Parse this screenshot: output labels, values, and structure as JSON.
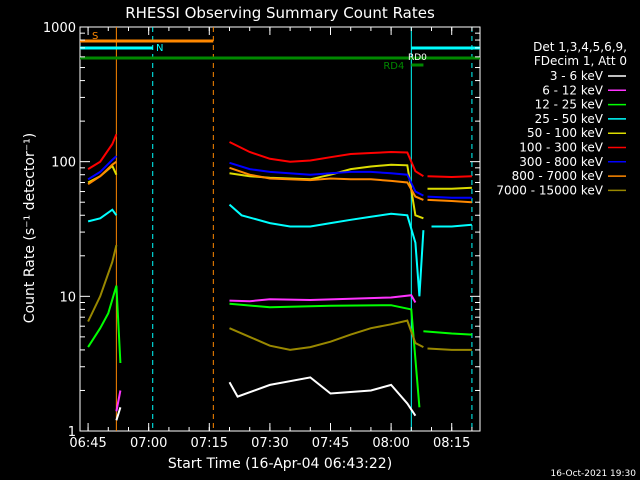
{
  "chart_data": {
    "type": "line",
    "title": "RHESSI Observing Summary Count Rates",
    "xlabel": "Start Time (16-Apr-04 06:43:22)",
    "ylabel": "Count Rate (s⁻¹ detector⁻¹)",
    "yscale": "log",
    "ylim": [
      1,
      1000
    ],
    "y_ticks": [
      {
        "value": 1,
        "label": "1"
      },
      {
        "value": 10,
        "label": "10"
      },
      {
        "value": 100,
        "label": "100"
      },
      {
        "value": 1000,
        "label": "1000"
      }
    ],
    "x_range": [
      "06:43",
      "08:22"
    ],
    "x_ticks": [
      "06:45",
      "07:00",
      "07:15",
      "07:30",
      "07:45",
      "08:00",
      "08:15"
    ],
    "legend": {
      "placement": "right",
      "header": [
        "Det 1,3,4,5,6,9,",
        "FDecim 1, Att 0"
      ]
    },
    "series": [
      {
        "name": "3 - 6 keV",
        "color": "#ffffff",
        "segments": [
          [
            [
              "06:52",
              1.2
            ],
            [
              "06:53",
              1.5
            ]
          ],
          [
            [
              "07:20",
              2.3
            ],
            [
              "07:22",
              1.8
            ],
            [
              "07:30",
              2.2
            ],
            [
              "07:40",
              2.5
            ],
            [
              "07:45",
              1.9
            ],
            [
              "07:55",
              2.0
            ],
            [
              "08:00",
              2.2
            ],
            [
              "08:04",
              1.6
            ],
            [
              "08:06",
              1.3
            ]
          ]
        ]
      },
      {
        "name": "6 - 12 keV",
        "color": "#ff33ff",
        "segments": [
          [
            [
              "06:52",
              1.4
            ],
            [
              "06:53",
              2.0
            ]
          ],
          [
            [
              "07:20",
              9.3
            ],
            [
              "07:25",
              9.2
            ],
            [
              "07:30",
              9.5
            ],
            [
              "07:40",
              9.4
            ],
            [
              "07:50",
              9.6
            ],
            [
              "08:00",
              9.8
            ],
            [
              "08:05",
              10.2
            ],
            [
              "08:06",
              9.0
            ]
          ]
        ]
      },
      {
        "name": "12 - 25 keV",
        "color": "#00ff00",
        "segments": [
          [
            [
              "06:45",
              4.2
            ],
            [
              "06:48",
              5.8
            ],
            [
              "06:50",
              7.5
            ],
            [
              "06:52",
              12
            ],
            [
              "06:53",
              3.2
            ]
          ],
          [
            [
              "07:20",
              8.8
            ],
            [
              "07:30",
              8.3
            ],
            [
              "07:45",
              8.5
            ],
            [
              "08:00",
              8.6
            ],
            [
              "08:05",
              8.0
            ],
            [
              "08:07",
              1.5
            ]
          ],
          [
            [
              "08:08",
              5.5
            ],
            [
              "08:15",
              5.3
            ],
            [
              "08:20",
              5.2
            ]
          ]
        ]
      },
      {
        "name": "25 - 50 keV",
        "color": "#00ffff",
        "segments": [
          [
            [
              "06:45",
              36
            ],
            [
              "06:48",
              38
            ],
            [
              "06:51",
              44
            ],
            [
              "06:52",
              40
            ]
          ],
          [
            [
              "07:20",
              48
            ],
            [
              "07:23",
              40
            ],
            [
              "07:30",
              35
            ],
            [
              "07:35",
              33
            ],
            [
              "07:40",
              33
            ],
            [
              "07:45",
              35
            ],
            [
              "07:50",
              37
            ],
            [
              "07:55",
              39
            ],
            [
              "08:00",
              41
            ],
            [
              "08:04",
              40
            ],
            [
              "08:06",
              25
            ],
            [
              "08:07",
              10
            ],
            [
              "08:08",
              31
            ]
          ],
          [
            [
              "08:10",
              33
            ],
            [
              "08:15",
              33
            ],
            [
              "08:20",
              34
            ]
          ]
        ]
      },
      {
        "name": "50 - 100 keV",
        "color": "#dddd00",
        "segments": [
          [
            [
              "06:45",
              70
            ],
            [
              "06:48",
              78
            ],
            [
              "06:51",
              93
            ],
            [
              "06:52",
              80
            ]
          ],
          [
            [
              "07:20",
              82
            ],
            [
              "07:25",
              78
            ],
            [
              "07:30",
              76
            ],
            [
              "07:40",
              74
            ],
            [
              "07:45",
              80
            ],
            [
              "07:50",
              88
            ],
            [
              "07:55",
              92
            ],
            [
              "08:00",
              95
            ],
            [
              "08:04",
              94
            ],
            [
              "08:06",
              40
            ],
            [
              "08:08",
              38
            ]
          ],
          [
            [
              "08:09",
              63
            ],
            [
              "08:15",
              63
            ],
            [
              "08:20",
              64
            ]
          ]
        ]
      },
      {
        "name": "100 - 300 keV",
        "color": "#ff0000",
        "segments": [
          [
            [
              "06:45",
              88
            ],
            [
              "06:48",
              100
            ],
            [
              "06:51",
              135
            ],
            [
              "06:52",
              160
            ]
          ],
          [
            [
              "07:20",
              140
            ],
            [
              "07:25",
              118
            ],
            [
              "07:30",
              105
            ],
            [
              "07:35",
              100
            ],
            [
              "07:40",
              102
            ],
            [
              "07:45",
              108
            ],
            [
              "07:50",
              114
            ],
            [
              "07:55",
              116
            ],
            [
              "08:00",
              118
            ],
            [
              "08:04",
              117
            ],
            [
              "08:06",
              85
            ],
            [
              "08:08",
              78
            ]
          ],
          [
            [
              "08:09",
              78
            ],
            [
              "08:15",
              77
            ],
            [
              "08:20",
              78
            ]
          ]
        ]
      },
      {
        "name": "300 - 800 keV",
        "color": "#0000ff",
        "segments": [
          [
            [
              "06:45",
              74
            ],
            [
              "06:48",
              84
            ],
            [
              "06:51",
              103
            ],
            [
              "06:52",
              110
            ]
          ],
          [
            [
              "07:20",
              98
            ],
            [
              "07:25",
              88
            ],
            [
              "07:30",
              84
            ],
            [
              "07:40",
              80
            ],
            [
              "07:45",
              82
            ],
            [
              "07:50",
              84
            ],
            [
              "07:55",
              84
            ],
            [
              "08:00",
              82
            ],
            [
              "08:04",
              80
            ],
            [
              "08:06",
              60
            ],
            [
              "08:08",
              56
            ]
          ],
          [
            [
              "08:09",
              55
            ],
            [
              "08:15",
              54
            ],
            [
              "08:20",
              54
            ]
          ]
        ]
      },
      {
        "name": "800 - 7000 keV",
        "color": "#ff8800",
        "segments": [
          [
            [
              "06:45",
              68
            ],
            [
              "06:48",
              78
            ],
            [
              "06:51",
              95
            ],
            [
              "06:52",
              100
            ]
          ],
          [
            [
              "07:20",
              90
            ],
            [
              "07:25",
              80
            ],
            [
              "07:30",
              75
            ],
            [
              "07:40",
              73
            ],
            [
              "07:45",
              75
            ],
            [
              "07:50",
              74
            ],
            [
              "07:55",
              74
            ],
            [
              "08:00",
              72
            ],
            [
              "08:04",
              70
            ],
            [
              "08:06",
              55
            ],
            [
              "08:08",
              52
            ]
          ],
          [
            [
              "08:09",
              52
            ],
            [
              "08:15",
              51
            ],
            [
              "08:20",
              50
            ]
          ]
        ]
      },
      {
        "name": "7000 - 15000 keV",
        "color": "#998800",
        "segments": [
          [
            [
              "06:45",
              6.5
            ],
            [
              "06:48",
              10
            ],
            [
              "06:51",
              18
            ],
            [
              "06:52",
              24
            ]
          ],
          [
            [
              "07:20",
              5.8
            ],
            [
              "07:25",
              5.0
            ],
            [
              "07:30",
              4.3
            ],
            [
              "07:35",
              4.0
            ],
            [
              "07:40",
              4.2
            ],
            [
              "07:45",
              4.6
            ],
            [
              "07:50",
              5.2
            ],
            [
              "07:55",
              5.8
            ],
            [
              "08:00",
              6.2
            ],
            [
              "08:04",
              6.6
            ],
            [
              "08:06",
              4.5
            ],
            [
              "08:08",
              4.2
            ]
          ],
          [
            [
              "08:09",
              4.1
            ],
            [
              "08:15",
              4.0
            ],
            [
              "08:20",
              4.0
            ]
          ]
        ]
      }
    ],
    "flag_bars": [
      {
        "label": "S",
        "color": "#ff8800",
        "start": "06:43",
        "end": "07:16",
        "level": "top"
      },
      {
        "label": "N",
        "color": "#00ffff",
        "start": "06:43",
        "end": "07:01",
        "level": "second"
      },
      {
        "label": "N",
        "color": "#00ffff",
        "start": "08:05",
        "end": "08:22",
        "level": "second",
        "show_label": false
      },
      {
        "label": "",
        "color": "#008800",
        "start": "06:43",
        "end": "08:22",
        "level": "third"
      },
      {
        "label": "RD4",
        "color": "#008800",
        "start": "08:05",
        "end": "08:08",
        "level": "fourth"
      },
      {
        "label": "RD0",
        "color": "#ffffff",
        "level": "third-label"
      }
    ],
    "markers": [
      {
        "time": "06:52",
        "color": "#ff8800",
        "style": "solid"
      },
      {
        "time": "07:01",
        "color": "#00ffff",
        "style": "dashed"
      },
      {
        "time": "07:16",
        "color": "#ff8800",
        "style": "dashed"
      },
      {
        "time": "08:05",
        "color": "#00ffff",
        "style": "solid"
      },
      {
        "time": "08:20",
        "color": "#00ffff",
        "style": "dashed"
      }
    ],
    "footer_stamp": "16-Oct-2021 19:30"
  }
}
